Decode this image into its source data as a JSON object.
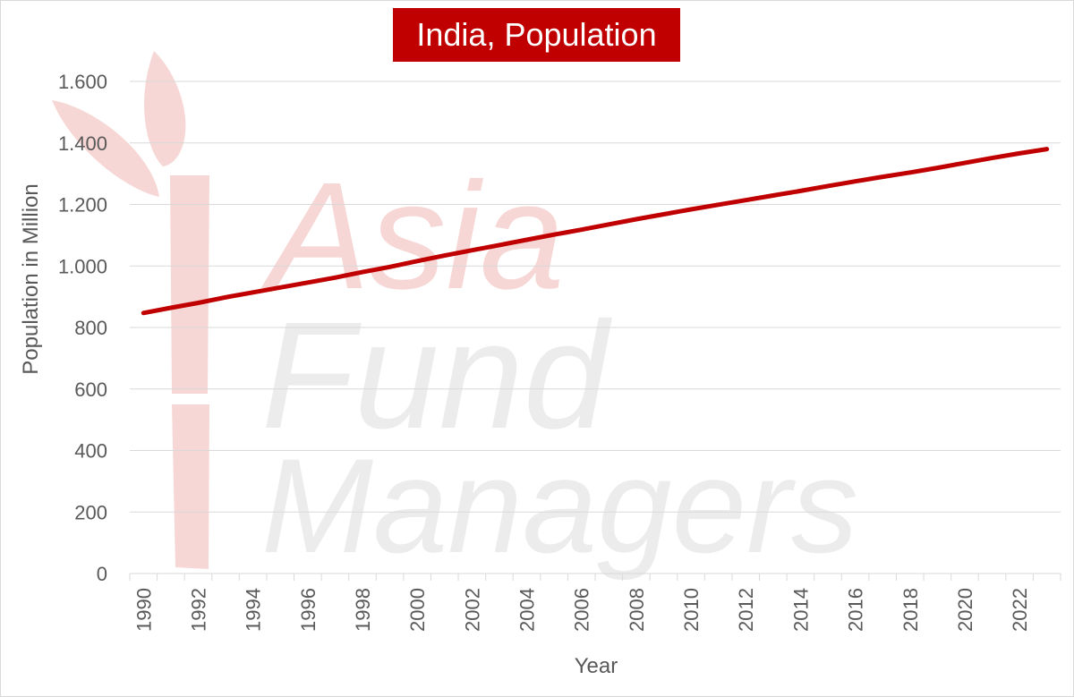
{
  "watermark": {
    "lines": [
      "Asia",
      "Fund",
      "Managers"
    ]
  },
  "chart_data": {
    "type": "line",
    "title": "India, Population",
    "xlabel": "Year",
    "ylabel": "Population in Million",
    "ylim": [
      0,
      1600
    ],
    "yticks": [
      0,
      200,
      400,
      600,
      800,
      1000,
      1200,
      1400,
      1600
    ],
    "ytick_labels": [
      "0",
      "200",
      "400",
      "600",
      "800",
      "1.000",
      "1.200",
      "1.400",
      "1.600"
    ],
    "xtick_labels": [
      "1990",
      "1992",
      "1994",
      "1996",
      "1998",
      "2000",
      "2002",
      "2004",
      "2006",
      "2008",
      "2010",
      "2012",
      "2014",
      "2016",
      "2018",
      "2020",
      "2022"
    ],
    "grid": true,
    "line_color": "#c00000",
    "series": [
      {
        "x": [
          1990,
          1991,
          1992,
          1993,
          1994,
          1995,
          1996,
          1997,
          1998,
          1999,
          2000,
          2001,
          2002,
          2003,
          2004,
          2005,
          2006,
          2007,
          2008,
          2009,
          2010,
          2011,
          2012,
          2013,
          2014,
          2015,
          2016,
          2017,
          2018,
          2019,
          2020,
          2021,
          2022,
          2023
        ],
        "values": [
          847,
          864,
          880,
          898,
          914,
          930,
          946,
          962,
          980,
          997,
          1016,
          1034,
          1051,
          1068,
          1085,
          1102,
          1118,
          1135,
          1152,
          1168,
          1184,
          1199,
          1214,
          1229,
          1244,
          1260,
          1275,
          1290,
          1304,
          1319,
          1335,
          1351,
          1366,
          1380
        ]
      }
    ]
  }
}
